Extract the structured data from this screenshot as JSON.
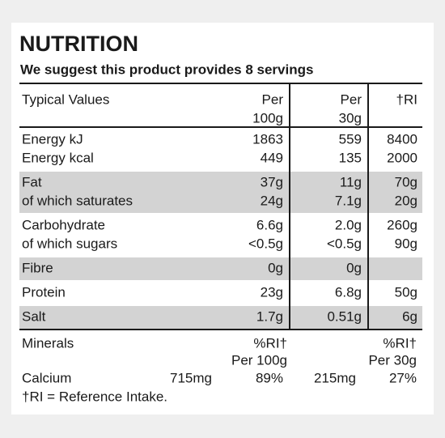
{
  "header": {
    "title": "NUTRITION",
    "subtitle": "We suggest this product provides 8 servings"
  },
  "table": {
    "columns": [
      [
        "Typical Values"
      ],
      [
        "Per",
        "100g"
      ],
      [
        "Per",
        "30g"
      ],
      [
        "†RI"
      ]
    ],
    "groups": [
      {
        "shaded": false,
        "rows": [
          [
            "Energy kJ",
            "1863",
            "559",
            "8400"
          ],
          [
            "Energy kcal",
            "449",
            "135",
            "2000"
          ]
        ]
      },
      {
        "shaded": true,
        "rows": [
          [
            "Fat",
            "37g",
            "11g",
            "70g"
          ],
          [
            "of which saturates",
            "24g",
            "7.1g",
            "20g"
          ]
        ]
      },
      {
        "shaded": false,
        "rows": [
          [
            "Carbohydrate",
            "6.6g",
            "2.0g",
            "260g"
          ],
          [
            "of which sugars",
            "<0.5g",
            "<0.5g",
            "90g"
          ]
        ]
      },
      {
        "shaded": true,
        "rows": [
          [
            "Fibre",
            "0g",
            "0g",
            null
          ]
        ]
      },
      {
        "shaded": false,
        "rows": [
          [
            "Protein",
            "23g",
            "6.8g",
            "50g"
          ]
        ]
      },
      {
        "shaded": true,
        "rows": [
          [
            "Salt",
            "1.7g",
            "0.51g",
            "6g"
          ]
        ]
      }
    ]
  },
  "minerals": {
    "label": "Minerals",
    "headers": [
      [
        "%RI†",
        "Per 100g"
      ],
      [
        "%RI†",
        "Per 30g"
      ]
    ],
    "rows": [
      [
        "Calcium",
        "715mg",
        "89%",
        "215mg",
        "27%"
      ]
    ]
  },
  "footnote": "†RI = Reference Intake."
}
